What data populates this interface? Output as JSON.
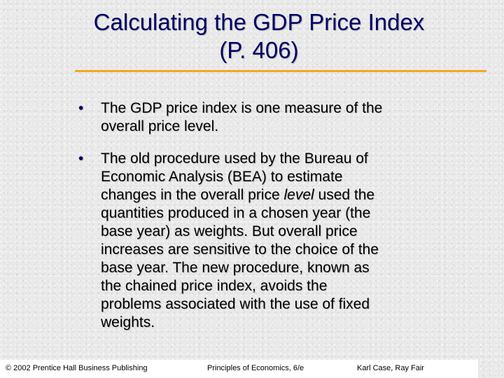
{
  "slide": {
    "title_line1": "Calculating the GDP Price Index",
    "title_line2": "(P. 406)",
    "bullet_glyph": "•",
    "bullets": [
      {
        "lines": [
          "The GDP price index is one measure of the",
          "overall price level."
        ]
      },
      {
        "lines": [
          "The old procedure used by the Bureau of",
          "Economic Analysis (BEA) to estimate",
          "changes in the overall price ",
          "level",
          " used the",
          "quantities produced in a chosen year (the",
          "base year) as weights.  But overall price",
          "increases are sensitive to the choice of the",
          "base year.  The new procedure, known as",
          "the chained price index, avoids the",
          "problems associated with the use of fixed",
          "weights."
        ]
      }
    ]
  },
  "footer": {
    "copyright": "© 2002 Prentice Hall Business Publishing",
    "book": "Principles of Economics, 6/e",
    "authors": "Karl Case, Ray Fair"
  },
  "colors": {
    "title": "#000066",
    "rule": "#f5a623",
    "background": "#e9e9e9"
  }
}
